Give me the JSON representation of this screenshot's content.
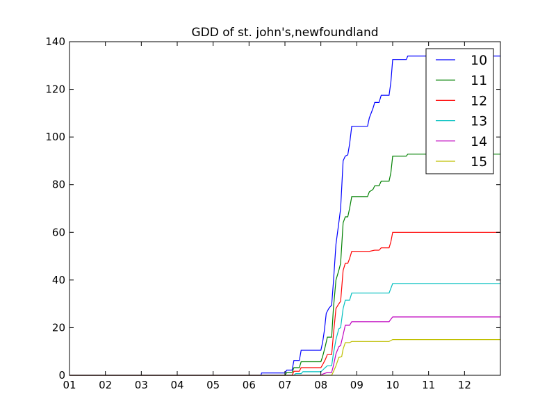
{
  "chart_data": {
    "type": "line",
    "title": "GDD of st. john's,newfoundland",
    "xlabel": "",
    "ylabel": "",
    "x_ticks": [
      "01",
      "02",
      "03",
      "04",
      "05",
      "06",
      "07",
      "08",
      "09",
      "10",
      "11",
      "12"
    ],
    "xlim": [
      1,
      13
    ],
    "ylim": [
      0,
      140
    ],
    "y_ticks": [
      0,
      20,
      40,
      60,
      80,
      100,
      120,
      140
    ],
    "grid": false,
    "legend": "top-right",
    "series": [
      {
        "name": "10",
        "color": "#0000ff",
        "points": [
          [
            1.0,
            0
          ],
          [
            6.33,
            0
          ],
          [
            6.35,
            1.0
          ],
          [
            7.0,
            1.0
          ],
          [
            7.05,
            2.2
          ],
          [
            7.2,
            2.2
          ],
          [
            7.25,
            6.2
          ],
          [
            7.4,
            6.2
          ],
          [
            7.45,
            10.5
          ],
          [
            8.0,
            10.5
          ],
          [
            8.05,
            14
          ],
          [
            8.1,
            19
          ],
          [
            8.15,
            26
          ],
          [
            8.22,
            28
          ],
          [
            8.3,
            29.5
          ],
          [
            8.35,
            39
          ],
          [
            8.42,
            55
          ],
          [
            8.5,
            64
          ],
          [
            8.55,
            70
          ],
          [
            8.62,
            90
          ],
          [
            8.68,
            92
          ],
          [
            8.75,
            92.5
          ],
          [
            8.8,
            97
          ],
          [
            8.86,
            104.5
          ],
          [
            9.3,
            104.5
          ],
          [
            9.35,
            108
          ],
          [
            9.45,
            112
          ],
          [
            9.5,
            114.5
          ],
          [
            9.62,
            114.5
          ],
          [
            9.68,
            117.5
          ],
          [
            9.9,
            117.5
          ],
          [
            9.95,
            123
          ],
          [
            10.0,
            132.5
          ],
          [
            10.38,
            132.5
          ],
          [
            10.42,
            134
          ],
          [
            13.0,
            134
          ]
        ]
      },
      {
        "name": "11",
        "color": "#008000",
        "points": [
          [
            1.0,
            0
          ],
          [
            7.0,
            0
          ],
          [
            7.05,
            1.2
          ],
          [
            7.2,
            1.2
          ],
          [
            7.25,
            3.2
          ],
          [
            7.4,
            3.2
          ],
          [
            7.45,
            5.7
          ],
          [
            8.0,
            5.7
          ],
          [
            8.05,
            8
          ],
          [
            8.12,
            12
          ],
          [
            8.18,
            16
          ],
          [
            8.3,
            16
          ],
          [
            8.35,
            28
          ],
          [
            8.42,
            40
          ],
          [
            8.5,
            44
          ],
          [
            8.55,
            47
          ],
          [
            8.62,
            64
          ],
          [
            8.68,
            66.5
          ],
          [
            8.75,
            66.5
          ],
          [
            8.8,
            70
          ],
          [
            8.86,
            75
          ],
          [
            9.3,
            75
          ],
          [
            9.35,
            77
          ],
          [
            9.45,
            78
          ],
          [
            9.5,
            79.5
          ],
          [
            9.62,
            79.5
          ],
          [
            9.68,
            81.5
          ],
          [
            9.9,
            81.5
          ],
          [
            9.95,
            85
          ],
          [
            10.0,
            92
          ],
          [
            10.38,
            92
          ],
          [
            10.42,
            92.8
          ],
          [
            13.0,
            92.8
          ]
        ]
      },
      {
        "name": "12",
        "color": "#ff0000",
        "points": [
          [
            1.0,
            0
          ],
          [
            7.2,
            0
          ],
          [
            7.25,
            1.7
          ],
          [
            7.4,
            1.7
          ],
          [
            7.45,
            3.2
          ],
          [
            8.0,
            3.2
          ],
          [
            8.05,
            4.5
          ],
          [
            8.12,
            6.5
          ],
          [
            8.18,
            8.7
          ],
          [
            8.3,
            8.7
          ],
          [
            8.35,
            17
          ],
          [
            8.42,
            28
          ],
          [
            8.5,
            30
          ],
          [
            8.55,
            31
          ],
          [
            8.62,
            44
          ],
          [
            8.68,
            47
          ],
          [
            8.75,
            47
          ],
          [
            8.8,
            49
          ],
          [
            8.86,
            52
          ],
          [
            9.3,
            52
          ],
          [
            9.35,
            52
          ],
          [
            9.5,
            52.5
          ],
          [
            9.62,
            52.5
          ],
          [
            9.68,
            53.5
          ],
          [
            9.9,
            53.5
          ],
          [
            9.95,
            56
          ],
          [
            10.0,
            60
          ],
          [
            13.0,
            60
          ]
        ]
      },
      {
        "name": "13",
        "color": "#00bfbf",
        "points": [
          [
            1.0,
            0
          ],
          [
            7.25,
            0
          ],
          [
            7.3,
            0.7
          ],
          [
            7.45,
            0.7
          ],
          [
            7.5,
            1.5
          ],
          [
            8.0,
            1.5
          ],
          [
            8.05,
            2.2
          ],
          [
            8.12,
            3.2
          ],
          [
            8.18,
            4
          ],
          [
            8.3,
            4
          ],
          [
            8.35,
            9
          ],
          [
            8.42,
            15
          ],
          [
            8.5,
            19.5
          ],
          [
            8.55,
            20
          ],
          [
            8.62,
            28
          ],
          [
            8.68,
            31.5
          ],
          [
            8.8,
            31.5
          ],
          [
            8.86,
            34.5
          ],
          [
            9.6,
            34.5
          ],
          [
            9.9,
            34.5
          ],
          [
            9.95,
            36.5
          ],
          [
            10.0,
            38.5
          ],
          [
            13.0,
            38.5
          ]
        ]
      },
      {
        "name": "14",
        "color": "#bf00bf",
        "points": [
          [
            1.0,
            0
          ],
          [
            8.0,
            0
          ],
          [
            8.05,
            0.5
          ],
          [
            8.18,
            1.2
          ],
          [
            8.3,
            1.2
          ],
          [
            8.35,
            4
          ],
          [
            8.42,
            9
          ],
          [
            8.5,
            12
          ],
          [
            8.55,
            12.5
          ],
          [
            8.62,
            17
          ],
          [
            8.68,
            21
          ],
          [
            8.8,
            21
          ],
          [
            8.86,
            22.5
          ],
          [
            9.9,
            22.5
          ],
          [
            9.95,
            23.5
          ],
          [
            10.0,
            24.5
          ],
          [
            13.0,
            24.5
          ]
        ]
      },
      {
        "name": "15",
        "color": "#bfbf00",
        "points": [
          [
            1.0,
            0
          ],
          [
            8.3,
            0
          ],
          [
            8.35,
            1.5
          ],
          [
            8.42,
            4
          ],
          [
            8.5,
            7.5
          ],
          [
            8.58,
            7.8
          ],
          [
            8.62,
            11
          ],
          [
            8.68,
            13.7
          ],
          [
            8.8,
            13.7
          ],
          [
            8.86,
            14.2
          ],
          [
            9.9,
            14.2
          ],
          [
            10.0,
            15
          ],
          [
            13.0,
            15
          ]
        ]
      }
    ]
  }
}
